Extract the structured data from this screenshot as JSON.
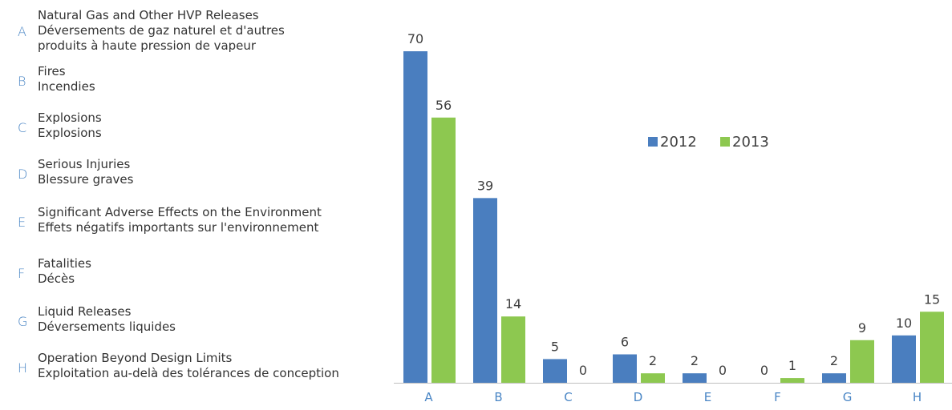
{
  "legend_items": [
    {
      "letter": "A",
      "lines": [
        "Natural Gas and Other HVP Releases",
        "Déversements de gaz naturel et d'autres",
        "produits à haute pression de vapeur"
      ]
    },
    {
      "letter": "B",
      "lines": [
        "Fires",
        "Incendies"
      ]
    },
    {
      "letter": "C",
      "lines": [
        "Explosions",
        "Explosions"
      ]
    },
    {
      "letter": "D",
      "lines": [
        "Serious Injuries",
        "Blessure graves"
      ]
    },
    {
      "letter": "E",
      "lines": [
        "Significant Adverse Effects on the Environment",
        "Effets négatifs importants sur l'environnement"
      ]
    },
    {
      "letter": "F",
      "lines": [
        "Fatalities",
        "Décès"
      ]
    },
    {
      "letter": "G",
      "lines": [
        "Liquid Releases",
        "Déversements liquides"
      ]
    },
    {
      "letter": "H",
      "lines": [
        "Operation Beyond Design Limits",
        "Exploitation au-delà des tolérances de conception"
      ]
    }
  ],
  "chart_data": {
    "type": "bar",
    "categories": [
      "A",
      "B",
      "C",
      "D",
      "E",
      "F",
      "G",
      "H"
    ],
    "series": [
      {
        "name": "2012",
        "color": "#4a7ebf",
        "values": [
          70,
          39,
          5,
          6,
          2,
          0,
          2,
          10
        ]
      },
      {
        "name": "2013",
        "color": "#8dc850",
        "values": [
          56,
          14,
          0,
          2,
          0,
          1,
          9,
          15
        ]
      }
    ],
    "ylim": [
      0,
      70
    ],
    "data_labels": true,
    "grid": false,
    "legend_position": "upper-right-inside",
    "axis_color": "#bfbfbf",
    "category_label_color": "#4a86c5"
  }
}
